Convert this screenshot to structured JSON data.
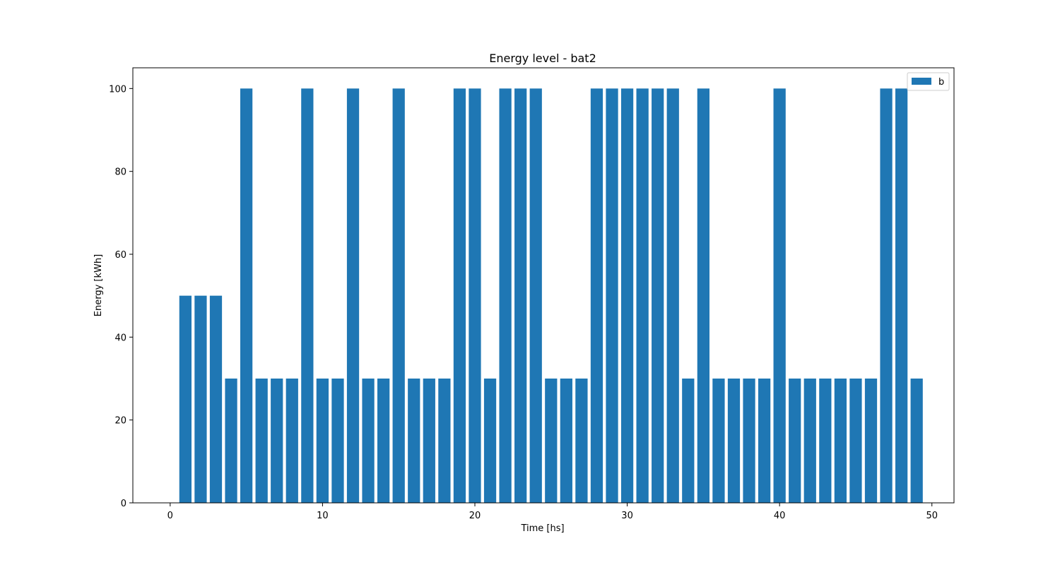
{
  "chart_data": {
    "type": "bar",
    "title": "Energy level - bat2",
    "xlabel": "Time [hs]",
    "ylabel": "Energy [kWh]",
    "xlim": [
      -2.45,
      51.45
    ],
    "ylim": [
      0,
      105
    ],
    "xticks": [
      0,
      10,
      20,
      30,
      40,
      50
    ],
    "yticks": [
      0,
      20,
      40,
      60,
      80,
      100
    ],
    "bar_width": 0.8,
    "grid": false,
    "legend_position": "upper right",
    "color": "#1f77b4",
    "series": [
      {
        "name": "b",
        "x": [
          1,
          2,
          3,
          4,
          5,
          6,
          7,
          8,
          9,
          10,
          11,
          12,
          13,
          14,
          15,
          16,
          17,
          18,
          19,
          20,
          21,
          22,
          23,
          24,
          25,
          26,
          27,
          28,
          29,
          30,
          31,
          32,
          33,
          34,
          35,
          36,
          37,
          38,
          39,
          40,
          41,
          42,
          43,
          44,
          45,
          46,
          47,
          48,
          49
        ],
        "values": [
          50,
          50,
          50,
          30,
          100,
          30,
          30,
          30,
          100,
          30,
          30,
          100,
          30,
          30,
          100,
          30,
          30,
          30,
          100,
          100,
          30,
          100,
          100,
          100,
          30,
          30,
          30,
          100,
          100,
          100,
          100,
          100,
          100,
          30,
          100,
          30,
          30,
          30,
          30,
          100,
          30,
          30,
          30,
          30,
          30,
          30,
          100,
          100,
          30
        ]
      }
    ]
  }
}
